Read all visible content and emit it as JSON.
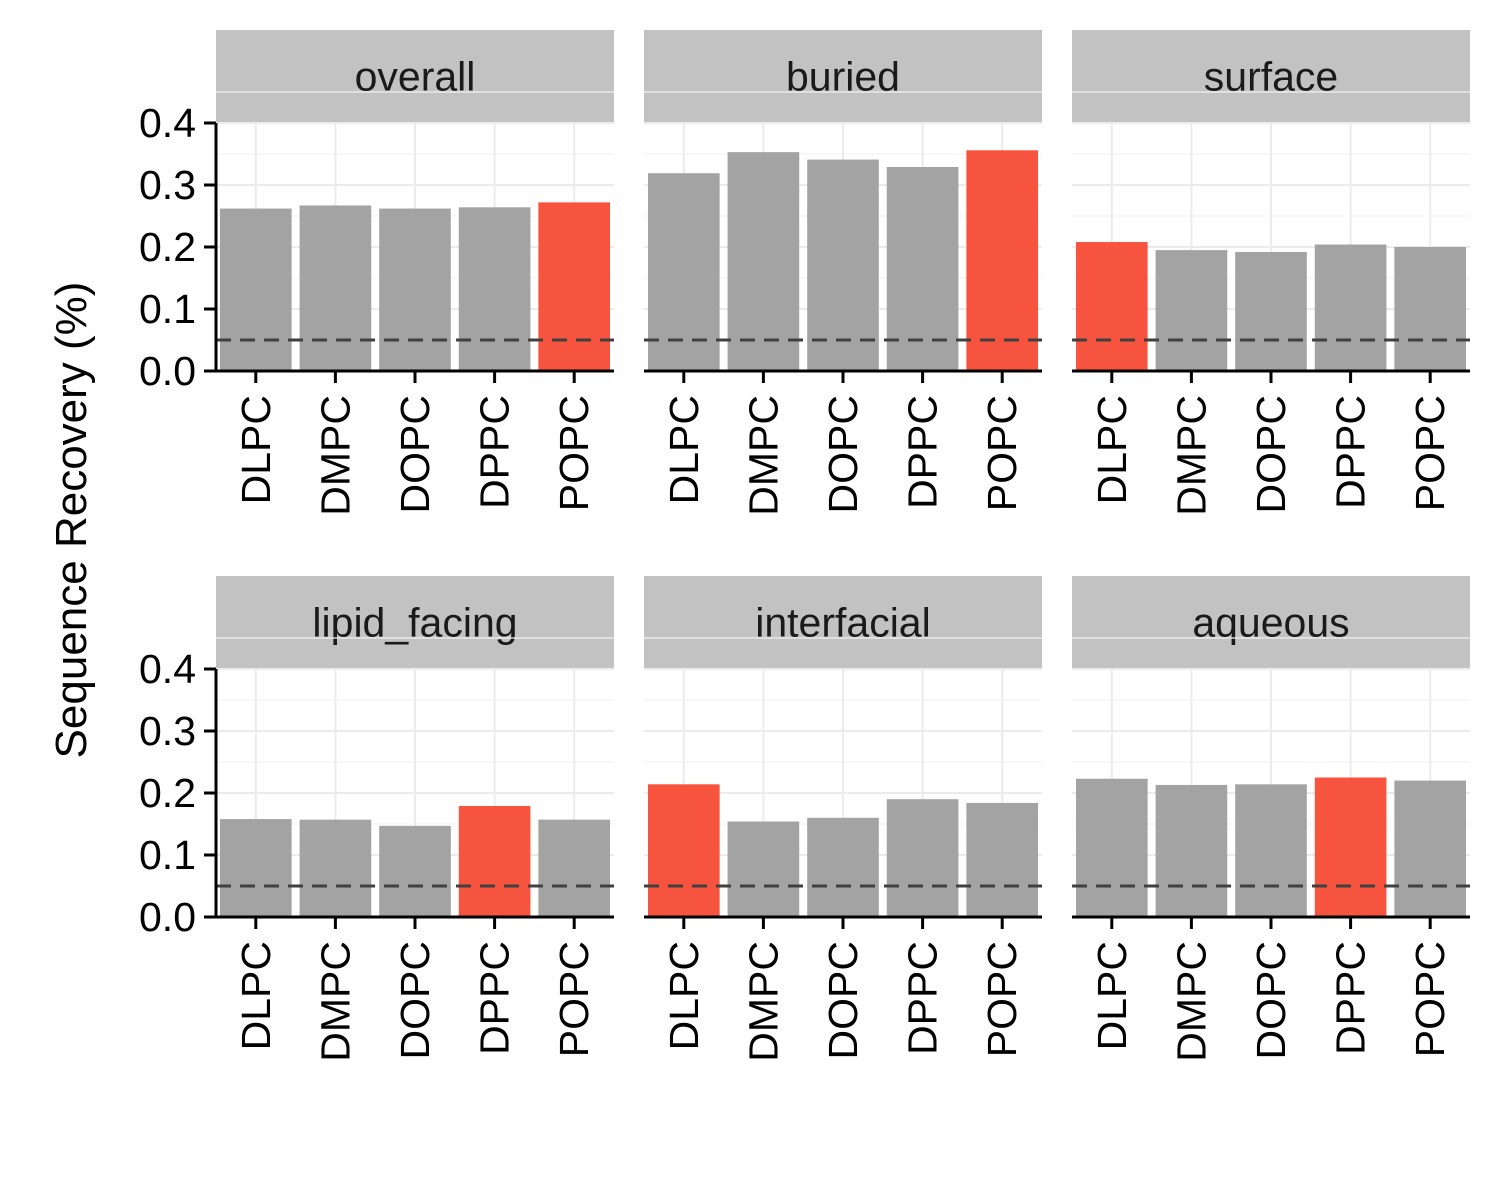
{
  "chart_data": {
    "type": "bar",
    "ylabel": "Sequence Recovery (%)",
    "xlabel": "",
    "ylim": [
      0,
      0.4
    ],
    "yticks": [
      0.0,
      0.1,
      0.2,
      0.3,
      0.4
    ],
    "ytick_labels": [
      "0.0",
      "0.1",
      "0.2",
      "0.3",
      "0.4"
    ],
    "reference_line": 0.05,
    "grid": true,
    "categories": [
      "DLPC",
      "DMPC",
      "DOPC",
      "DPPC",
      "POPC"
    ],
    "colors": {
      "default": "#a3a3a3",
      "highlight": "#f6543e",
      "strip": "#c2c2c2",
      "refline": "#404040",
      "grid": "#ebebeb"
    },
    "panels": [
      {
        "name": "overall",
        "values": [
          0.262,
          0.267,
          0.262,
          0.264,
          0.272
        ],
        "highlight": "POPC"
      },
      {
        "name": "buried",
        "values": [
          0.319,
          0.353,
          0.341,
          0.329,
          0.356
        ],
        "highlight": "POPC"
      },
      {
        "name": "surface",
        "values": [
          0.208,
          0.195,
          0.192,
          0.204,
          0.2
        ],
        "highlight": "DLPC"
      },
      {
        "name": "lipid_facing",
        "values": [
          0.158,
          0.157,
          0.147,
          0.179,
          0.157
        ],
        "highlight": "DPPC"
      },
      {
        "name": "interfacial",
        "values": [
          0.214,
          0.154,
          0.16,
          0.19,
          0.184
        ],
        "highlight": "DLPC"
      },
      {
        "name": "aqueous",
        "values": [
          0.223,
          0.213,
          0.214,
          0.225,
          0.22
        ],
        "highlight": "DPPC"
      }
    ]
  }
}
